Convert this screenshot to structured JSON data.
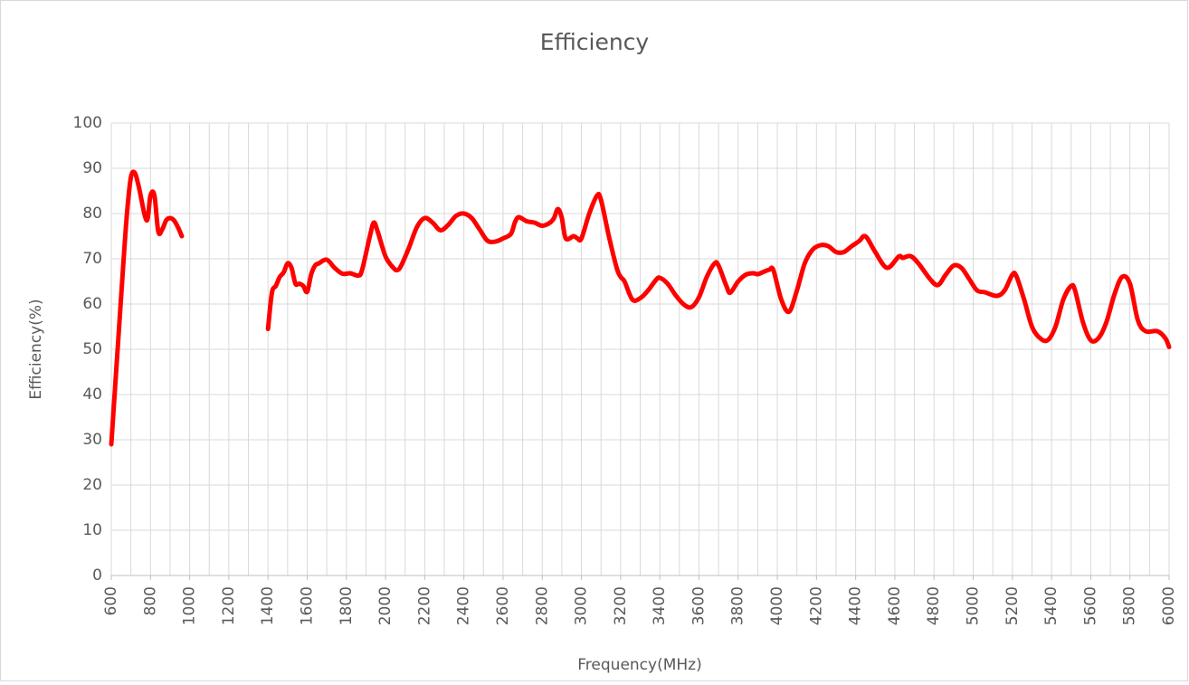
{
  "chart_data": {
    "type": "line",
    "title": "Efficiency",
    "x_label": "Frequency(MHz)",
    "y_label": "Efficiency(%)",
    "x": [
      600,
      620,
      640,
      660,
      680,
      700,
      720,
      740,
      780,
      800,
      820,
      840,
      860,
      880,
      900,
      920,
      940,
      960,
      980,
      1400,
      1420,
      1440,
      1460,
      1480,
      1500,
      1520,
      1540,
      1560,
      1580,
      1600,
      1620,
      1640,
      1660,
      1700,
      1740,
      1780,
      1820,
      1860,
      1880,
      1920,
      1940,
      1960,
      2000,
      2040,
      2060,
      2080,
      2120,
      2160,
      2200,
      2240,
      2280,
      2320,
      2360,
      2400,
      2440,
      2480,
      2520,
      2560,
      2600,
      2640,
      2660,
      2680,
      2720,
      2760,
      2800,
      2840,
      2860,
      2880,
      2900,
      2920,
      2960,
      2980,
      3000,
      3040,
      3080,
      3100,
      3140,
      3180,
      3200,
      3220,
      3260,
      3300,
      3340,
      3380,
      3400,
      3440,
      3480,
      3520,
      3560,
      3600,
      3640,
      3680,
      3700,
      3740,
      3760,
      3800,
      3840,
      3880,
      3900,
      3940,
      3960,
      3980,
      4020,
      4060,
      4100,
      4140,
      4180,
      4220,
      4260,
      4300,
      4340,
      4380,
      4420,
      4440,
      4460,
      4500,
      4560,
      4620,
      4640,
      4680,
      4720,
      4780,
      4820,
      4860,
      4900,
      4940,
      4980,
      5020,
      5060,
      5120,
      5160,
      5200,
      5220,
      5260,
      5300,
      5340,
      5380,
      5420,
      5460,
      5500,
      5520,
      5560,
      5600,
      5640,
      5680,
      5720,
      5760,
      5800,
      5840,
      5880,
      5940,
      5980,
      6000
    ],
    "series": [
      {
        "name": "Efficiency",
        "color": "#ff0000",
        "values": [
          29,
          42,
          55,
          68,
          80,
          88,
          89,
          86,
          78.5,
          84,
          84,
          76,
          76.5,
          78.5,
          79,
          78.5,
          77,
          75,
          null,
          54.5,
          62.5,
          64,
          66,
          67,
          69,
          68,
          64.5,
          64.5,
          64,
          62.7,
          66.5,
          68.5,
          69,
          69.8,
          68,
          66.7,
          66.8,
          66.3,
          67.5,
          75,
          78,
          76,
          70.5,
          68,
          67.5,
          68.5,
          72.5,
          77,
          79,
          78,
          76.3,
          77.5,
          79.5,
          80,
          79,
          76.5,
          74,
          73.8,
          74.5,
          75.5,
          78,
          79.2,
          78.3,
          78,
          77.3,
          78,
          79,
          81,
          79,
          74.5,
          75,
          74.5,
          74.5,
          80,
          84,
          83,
          75,
          68,
          66,
          65,
          61,
          61.3,
          63,
          65.3,
          65.8,
          64.5,
          62,
          60,
          59.3,
          61.5,
          66,
          69,
          68.5,
          64,
          62.5,
          65,
          66.5,
          66.8,
          66.6,
          67.3,
          67.6,
          67.5,
          61,
          58.3,
          63,
          69,
          72,
          73,
          72.8,
          71.5,
          71.5,
          72.8,
          74,
          75,
          74.5,
          71.5,
          68,
          70.5,
          70.2,
          70.6,
          69,
          65.5,
          64.2,
          66.5,
          68.5,
          68,
          65.5,
          63,
          62.6,
          61.8,
          63,
          66.5,
          66.2,
          61,
          55,
          52.5,
          52,
          55,
          61,
          64,
          63,
          56,
          52,
          52.5,
          56,
          62,
          66,
          64.5,
          56.5,
          54,
          54,
          52.5,
          50.5
        ]
      }
    ],
    "xlim": [
      600,
      6000
    ],
    "xticks": [
      600,
      800,
      1000,
      1200,
      1400,
      1600,
      1800,
      2000,
      2200,
      2400,
      2600,
      2800,
      3000,
      3200,
      3400,
      3600,
      3800,
      4000,
      4200,
      4400,
      4600,
      4800,
      5000,
      5200,
      5400,
      5600,
      5800,
      6000
    ],
    "ylim": [
      0,
      100
    ],
    "yticks": [
      0,
      10,
      20,
      30,
      40,
      50,
      60,
      70,
      80,
      90,
      100
    ],
    "grid": true,
    "minor_x_grid": true
  }
}
